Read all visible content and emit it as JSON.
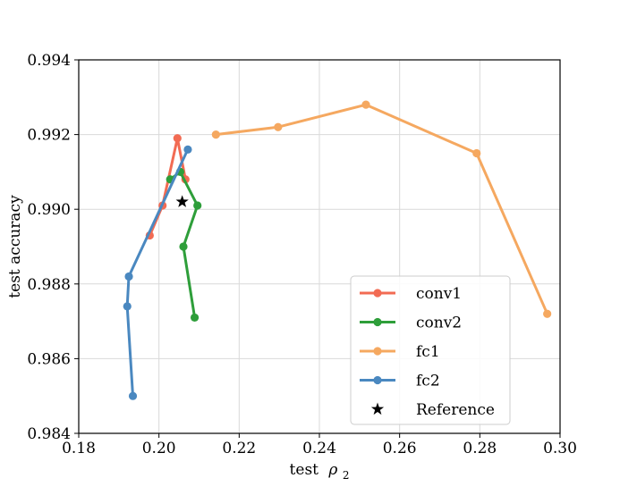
{
  "chart_data": {
    "type": "line",
    "title": "",
    "xlabel": "test",
    "xlabel_symbol": "ρ",
    "xlabel_subscript": "2",
    "ylabel": "test accuracy",
    "xlim": [
      0.18,
      0.3
    ],
    "ylim": [
      0.984,
      0.994
    ],
    "xticks": [
      "0.18",
      "0.20",
      "0.22",
      "0.24",
      "0.26",
      "0.28",
      "0.30"
    ],
    "yticks": [
      "0.984",
      "0.986",
      "0.988",
      "0.990",
      "0.992",
      "0.994"
    ],
    "grid": true,
    "legend_position": "lower-right",
    "series": [
      {
        "name": "conv1",
        "color": "#f26b53",
        "points": [
          [
            0.1977,
            0.9893
          ],
          [
            0.2009,
            0.9901
          ],
          [
            0.2046,
            0.9919
          ],
          [
            0.2066,
            0.9908
          ]
        ]
      },
      {
        "name": "conv2",
        "color": "#2e9e3a",
        "points": [
          [
            0.2089,
            0.9871
          ],
          [
            0.2061,
            0.989
          ],
          [
            0.2096,
            0.9901
          ],
          [
            0.2053,
            0.991
          ],
          [
            0.2028,
            0.9908
          ]
        ]
      },
      {
        "name": "fc1",
        "color": "#f5a860",
        "points": [
          [
            0.2142,
            0.992
          ],
          [
            0.2297,
            0.9922
          ],
          [
            0.2516,
            0.9928
          ],
          [
            0.2792,
            0.9915
          ],
          [
            0.2968,
            0.9872
          ]
        ]
      },
      {
        "name": "fc2",
        "color": "#4a88c0",
        "points": [
          [
            0.1935,
            0.985
          ],
          [
            0.1921,
            0.9874
          ],
          [
            0.1925,
            0.9882
          ],
          [
            0.2072,
            0.9916
          ]
        ]
      }
    ],
    "reference": {
      "name": "Reference",
      "color": "#000000",
      "point": [
        0.2058,
        0.9902
      ]
    }
  }
}
